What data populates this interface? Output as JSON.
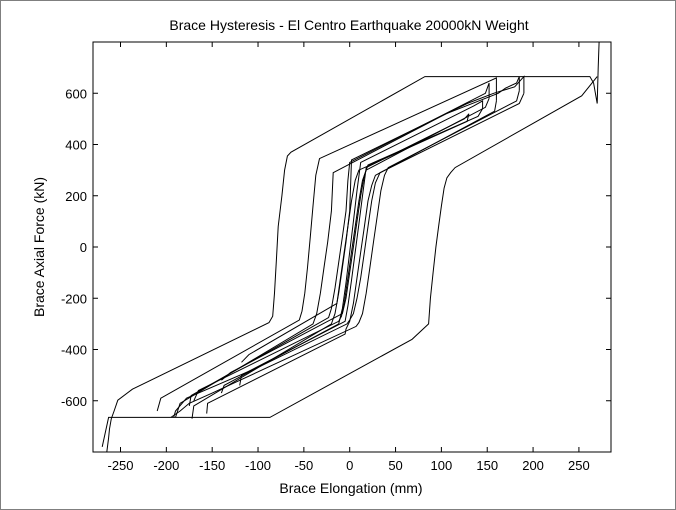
{
  "chart_data": {
    "type": "line",
    "title": "Brace Hysteresis - El Centro Earthquake 20000kN Weight",
    "xlabel": "Brace Elongation (mm)",
    "ylabel": "Brace Axial Force (kN)",
    "xlim": [
      -280,
      285
    ],
    "ylim": [
      -800,
      800
    ],
    "xticks": [
      -250,
      -200,
      -150,
      -100,
      -50,
      0,
      50,
      100,
      150,
      200,
      250
    ],
    "yticks": [
      -600,
      -400,
      -200,
      0,
      200,
      400,
      600
    ],
    "grid": false,
    "legend": "none",
    "line_color": "#000000",
    "series": [
      {
        "x": [
          -265,
          -263,
          -262,
          -260,
          -257,
          -253,
          -237,
          -88,
          -84,
          -82,
          -80,
          -78,
          -74,
          -71,
          -68,
          -64,
          82,
          262,
          266,
          268,
          270,
          271,
          272
        ],
        "y": [
          -800,
          -745,
          -710,
          -670,
          -640,
          -598,
          -555,
          -295,
          -270,
          -180,
          -50,
          80,
          200,
          300,
          355,
          370,
          665,
          665,
          640,
          600,
          560,
          700,
          800
        ]
      },
      {
        "x": [
          270,
          253,
          115,
          110,
          106,
          103,
          100,
          97,
          94,
          91,
          88,
          86,
          68,
          -87,
          -263,
          -270
        ],
        "y": [
          665,
          590,
          310,
          290,
          270,
          230,
          160,
          80,
          0,
          -100,
          -200,
          -300,
          -360,
          -665,
          -665,
          -780
        ]
      },
      {
        "x": [
          -210,
          -206,
          -55,
          -52,
          -49,
          -46,
          -43,
          -40,
          -37,
          -33,
          160,
          160
        ],
        "y": [
          -640,
          -590,
          -285,
          -250,
          -180,
          -80,
          40,
          160,
          280,
          345,
          660,
          570
        ]
      },
      {
        "x": [
          160,
          158,
          28,
          24,
          20,
          16,
          12,
          8,
          4,
          0,
          -4,
          -5,
          -155,
          -156
        ],
        "y": [
          570,
          530,
          280,
          240,
          180,
          80,
          -20,
          -120,
          -220,
          -290,
          -320,
          -340,
          -610,
          -650
        ]
      },
      {
        "x": [
          -190,
          -185,
          -40,
          -36,
          -32,
          -28,
          -24,
          -20,
          -18,
          105,
          162,
          170,
          182,
          185,
          185
        ],
        "y": [
          -665,
          -610,
          -300,
          -260,
          -180,
          -80,
          20,
          140,
          290,
          520,
          600,
          620,
          640,
          665,
          610
        ]
      },
      {
        "x": [
          185,
          182,
          42,
          38,
          34,
          30,
          26,
          22,
          18,
          14,
          10,
          7,
          -150,
          -175,
          -185,
          -195
        ],
        "y": [
          610,
          570,
          310,
          280,
          220,
          120,
          20,
          -80,
          -180,
          -260,
          -295,
          -310,
          -570,
          -610,
          -640,
          -665
        ]
      },
      {
        "x": [
          -172,
          -170,
          -20,
          -16,
          -12,
          -8,
          -4,
          0,
          2,
          128,
          157,
          180,
          190,
          190
        ],
        "y": [
          -670,
          -620,
          -300,
          -260,
          -180,
          -80,
          20,
          140,
          340,
          560,
          600,
          625,
          665,
          600
        ]
      },
      {
        "x": [
          190,
          185,
          33,
          28,
          24,
          20,
          16,
          12,
          8,
          4,
          0,
          -3,
          -100,
          -178,
          -190,
          -192
        ],
        "y": [
          600,
          560,
          290,
          250,
          180,
          80,
          -20,
          -120,
          -200,
          -260,
          -285,
          -300,
          -470,
          -590,
          -640,
          -665
        ]
      },
      {
        "x": [
          -175,
          -173,
          -23,
          -20,
          -16,
          -12,
          -8,
          -4,
          -2,
          0,
          148,
          152,
          152
        ],
        "y": [
          -620,
          -580,
          -275,
          -240,
          -160,
          -60,
          40,
          140,
          260,
          330,
          600,
          640,
          580
        ]
      },
      {
        "x": [
          152,
          148,
          18,
          14,
          10,
          6,
          2,
          -2,
          -6,
          -9,
          -12,
          -165,
          -170
        ],
        "y": [
          580,
          545,
          300,
          260,
          180,
          80,
          -20,
          -120,
          -220,
          -270,
          -290,
          -560,
          -600
        ]
      },
      {
        "x": [
          -140,
          -137,
          -12,
          -8,
          -4,
          0,
          4,
          8,
          12,
          135,
          145,
          145
        ],
        "y": [
          -570,
          -540,
          -300,
          -240,
          -140,
          -20,
          100,
          220,
          330,
          550,
          570,
          540
        ]
      },
      {
        "x": [
          145,
          140,
          20,
          16,
          12,
          8,
          4,
          0,
          -4,
          -8,
          -130,
          -140
        ],
        "y": [
          540,
          510,
          320,
          280,
          200,
          100,
          0,
          -100,
          -200,
          -260,
          -490,
          -520
        ]
      },
      {
        "x": [
          -120,
          -118,
          -5,
          -2,
          2,
          6,
          10,
          14,
          18,
          125,
          130
        ],
        "y": [
          -540,
          -500,
          -290,
          -230,
          -130,
          -20,
          90,
          200,
          310,
          500,
          520
        ]
      },
      {
        "x": [
          130,
          128,
          10,
          6,
          2,
          -2,
          -6,
          -10,
          -14,
          -110,
          -118
        ],
        "y": [
          520,
          490,
          300,
          260,
          180,
          80,
          -20,
          -120,
          -220,
          -420,
          -450
        ]
      }
    ]
  }
}
